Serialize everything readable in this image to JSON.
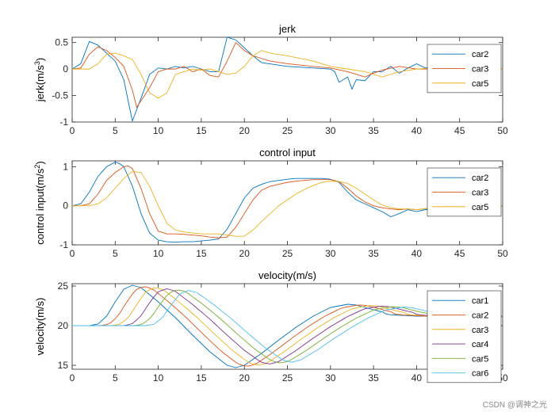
{
  "colors": {
    "car1": "#0072BD",
    "car2": "#D95319",
    "car3": "#EDB120",
    "car4": "#7E2F8E",
    "car5": "#77AC30",
    "car6": "#4DBEEE"
  },
  "watermark": "CSDN @调神之光",
  "chart_data": [
    {
      "type": "line",
      "title": "jerk",
      "xlabel": "",
      "ylabel": "jerk(m/s",
      "ylabel_sup": "3",
      "ylabel_tail": ")",
      "xlim": [
        0,
        50
      ],
      "ylim": [
        -1,
        0.6
      ],
      "xticks": [
        0,
        5,
        10,
        15,
        20,
        25,
        30,
        35,
        40,
        45,
        50
      ],
      "yticks": [
        -1,
        -0.5,
        0,
        0.5
      ],
      "ytick_labels": [
        "-1",
        "-0.5",
        "0",
        "0.5"
      ],
      "legend": "top-right",
      "series": [
        {
          "name": "car2",
          "color_key": "car1",
          "x": [
            0,
            1,
            2,
            3,
            4,
            5,
            6,
            6.5,
            7,
            8,
            9,
            10,
            11,
            12,
            13,
            14,
            15,
            16,
            17,
            18,
            19,
            20,
            21,
            22,
            25,
            28,
            30,
            30.5,
            31,
            32,
            32.5,
            33,
            34,
            35,
            36,
            37,
            38,
            39,
            40,
            41,
            42,
            45,
            50
          ],
          "y": [
            0,
            0.1,
            0.52,
            0.45,
            0.3,
            0.15,
            -0.2,
            -0.6,
            -0.98,
            -0.55,
            -0.1,
            0.02,
            0.0,
            0.05,
            0.02,
            0.05,
            0.0,
            -0.05,
            -0.05,
            0.6,
            0.55,
            0.4,
            0.25,
            0.12,
            0.05,
            0.02,
            0.0,
            -0.05,
            -0.25,
            -0.15,
            -0.38,
            -0.2,
            -0.22,
            -0.05,
            -0.05,
            0.05,
            -0.08,
            0.02,
            0.1,
            0.02,
            0.05,
            0.02,
            0.0
          ]
        },
        {
          "name": "car3",
          "color_key": "car2",
          "x": [
            0,
            1,
            2,
            3,
            4,
            5,
            6,
            7,
            7.5,
            8,
            9,
            10,
            11,
            12,
            13,
            14,
            15,
            16,
            17,
            18,
            19,
            20,
            21,
            22,
            23,
            25,
            28,
            30,
            32,
            34,
            35,
            36,
            38,
            40,
            42,
            45,
            50
          ],
          "y": [
            0,
            0.02,
            0.28,
            0.42,
            0.35,
            0.22,
            0.05,
            -0.4,
            -0.72,
            -0.6,
            -0.35,
            -0.05,
            0.0,
            0.0,
            0.05,
            -0.05,
            0.0,
            -0.12,
            -0.15,
            0.15,
            0.5,
            0.35,
            0.25,
            0.2,
            0.15,
            0.1,
            0.05,
            0.02,
            -0.05,
            -0.15,
            -0.08,
            -0.02,
            0.05,
            0.0,
            0.0,
            0.02,
            0.0
          ]
        },
        {
          "name": "car5",
          "color_key": "car3",
          "x": [
            0,
            1,
            2,
            3,
            4,
            5,
            6,
            7,
            8,
            9,
            10,
            11,
            12,
            13,
            14,
            15,
            16,
            17,
            18,
            19,
            20,
            21,
            22,
            23,
            25,
            28,
            30,
            32,
            34,
            36,
            38,
            40,
            42,
            45,
            48,
            50
          ],
          "y": [
            0,
            0,
            0.0,
            0.1,
            0.28,
            0.3,
            0.25,
            0.18,
            -0.1,
            -0.45,
            -0.55,
            -0.45,
            -0.1,
            -0.05,
            0.0,
            -0.02,
            0.0,
            -0.05,
            -0.1,
            -0.08,
            0.05,
            0.25,
            0.35,
            0.3,
            0.25,
            0.15,
            0.05,
            0.0,
            -0.05,
            -0.15,
            -0.05,
            0.0,
            0.02,
            0.0,
            0.0,
            0.0
          ]
        }
      ]
    },
    {
      "type": "line",
      "title": "control input",
      "xlabel": "",
      "ylabel": "control input(m/s",
      "ylabel_sup": "2",
      "ylabel_tail": ")",
      "xlim": [
        0,
        50
      ],
      "ylim": [
        -1,
        1.15
      ],
      "xticks": [
        0,
        5,
        10,
        15,
        20,
        25,
        30,
        35,
        40,
        45,
        50
      ],
      "yticks": [
        -1,
        0,
        1
      ],
      "ytick_labels": [
        "-1",
        "0",
        "1"
      ],
      "legend": "top-right",
      "series": [
        {
          "name": "car2",
          "color_key": "car1",
          "x": [
            0,
            1,
            2,
            3,
            4,
            5,
            5.5,
            6,
            7,
            8,
            9,
            10,
            11,
            12,
            13,
            14,
            15,
            16,
            17,
            18,
            19,
            20,
            21,
            22,
            23,
            24,
            25,
            26,
            27,
            28,
            29,
            30,
            31,
            32,
            33,
            34,
            35,
            36,
            37,
            38,
            39,
            40,
            41,
            42,
            45,
            48,
            50
          ],
          "y": [
            0,
            0.05,
            0.35,
            0.75,
            1.0,
            1.12,
            1.08,
            1.0,
            0.5,
            -0.2,
            -0.7,
            -0.88,
            -0.92,
            -0.93,
            -0.92,
            -0.92,
            -0.9,
            -0.88,
            -0.85,
            -0.6,
            -0.2,
            0.2,
            0.45,
            0.55,
            0.62,
            0.65,
            0.68,
            0.7,
            0.7,
            0.7,
            0.7,
            0.68,
            0.6,
            0.35,
            0.15,
            0.05,
            -0.05,
            -0.15,
            -0.28,
            -0.2,
            -0.1,
            -0.15,
            -0.1,
            -0.08,
            -0.05,
            -0.02,
            0.0
          ]
        },
        {
          "name": "car3",
          "color_key": "car2",
          "x": [
            0,
            1,
            2,
            3,
            4,
            5,
            6,
            6.5,
            7,
            8,
            9,
            10,
            11,
            12,
            13,
            14,
            15,
            16,
            17,
            18,
            19,
            20,
            21,
            22,
            23,
            24,
            25,
            26,
            27,
            28,
            29,
            30,
            31,
            32,
            33,
            34,
            35,
            36,
            37,
            38,
            39,
            40,
            42,
            45,
            50
          ],
          "y": [
            0,
            0,
            0.05,
            0.3,
            0.65,
            0.85,
            1.0,
            1.02,
            0.95,
            0.45,
            -0.2,
            -0.65,
            -0.72,
            -0.72,
            -0.73,
            -0.75,
            -0.77,
            -0.8,
            -0.82,
            -0.8,
            -0.55,
            -0.2,
            0.15,
            0.4,
            0.5,
            0.55,
            0.6,
            0.63,
            0.65,
            0.67,
            0.67,
            0.67,
            0.62,
            0.45,
            0.25,
            0.1,
            0.0,
            -0.05,
            -0.08,
            -0.1,
            -0.08,
            -0.1,
            -0.05,
            0.0,
            0.0
          ]
        },
        {
          "name": "car5",
          "color_key": "car3",
          "x": [
            0,
            1,
            2,
            3,
            4,
            5,
            6,
            7,
            8,
            9,
            10,
            11,
            12,
            13,
            14,
            15,
            16,
            17,
            18,
            19,
            20,
            21,
            22,
            23,
            24,
            25,
            26,
            27,
            28,
            29,
            30,
            31,
            32,
            33,
            34,
            35,
            36,
            37,
            38,
            39,
            40,
            42,
            45,
            50
          ],
          "y": [
            0,
            0,
            0,
            0.05,
            0.2,
            0.45,
            0.7,
            0.88,
            0.85,
            0.5,
            0.0,
            -0.45,
            -0.62,
            -0.67,
            -0.7,
            -0.72,
            -0.72,
            -0.72,
            -0.75,
            -0.78,
            -0.78,
            -0.62,
            -0.4,
            -0.2,
            0.0,
            0.15,
            0.3,
            0.42,
            0.52,
            0.6,
            0.63,
            0.62,
            0.57,
            0.45,
            0.3,
            0.15,
            0.02,
            -0.05,
            -0.08,
            -0.08,
            -0.1,
            -0.05,
            0.0,
            0.0
          ]
        }
      ]
    },
    {
      "type": "line",
      "title": "velocity(m/s)",
      "xlabel": "",
      "ylabel": "velocity(m/s)",
      "ylabel_sup": "",
      "ylabel_tail": "",
      "xlim": [
        0,
        50
      ],
      "ylim": [
        14.5,
        25.3
      ],
      "xticks": [
        0,
        5,
        10,
        15,
        20,
        25,
        30,
        35,
        40,
        45,
        50
      ],
      "yticks": [
        15,
        20,
        25
      ],
      "ytick_labels": [
        "15",
        "20",
        "25"
      ],
      "legend": "top-right",
      "series": [
        {
          "name": "car1",
          "color_key": "car1",
          "shift": 0
        },
        {
          "name": "car2",
          "color_key": "car2",
          "shift": 1
        },
        {
          "name": "car3",
          "color_key": "car3",
          "shift": 2
        },
        {
          "name": "car4",
          "color_key": "car4",
          "shift": 3
        },
        {
          "name": "car5",
          "color_key": "car5",
          "shift": 4
        },
        {
          "name": "car6",
          "color_key": "car6",
          "shift": 5
        }
      ],
      "base_curve": {
        "x": [
          0,
          2,
          3,
          4,
          5,
          6,
          7,
          8,
          10,
          12,
          14,
          16,
          18,
          19,
          20,
          22,
          24,
          26,
          28,
          30,
          32,
          33,
          35,
          37,
          40,
          45,
          50
        ],
        "y": [
          20,
          20,
          20.2,
          21.2,
          23.0,
          24.6,
          25.1,
          24.8,
          23.0,
          21.0,
          18.8,
          16.7,
          15.0,
          14.7,
          15.0,
          16.5,
          18.2,
          19.8,
          21.2,
          22.3,
          22.7,
          22.6,
          22.0,
          21.5,
          21.2,
          21.2,
          21.2
        ]
      },
      "amplitude_decay": [
        1.0,
        0.88,
        0.75,
        0.62,
        0.55,
        0.5
      ]
    }
  ]
}
